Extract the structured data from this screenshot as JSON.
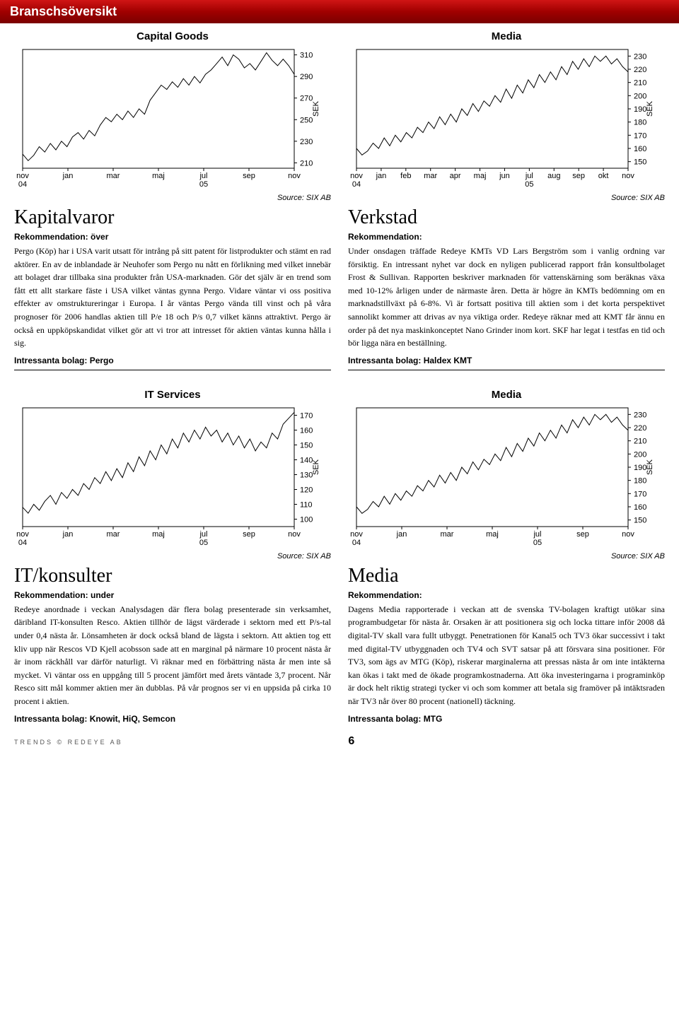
{
  "header": {
    "title": "Branschsöversikt"
  },
  "charts": {
    "capital_goods": {
      "title": "Capital Goods",
      "type": "line",
      "ylabel": "SEK",
      "ylim": [
        205,
        315
      ],
      "yticks": [
        210,
        230,
        250,
        270,
        290,
        310
      ],
      "xticks": [
        "nov 04",
        "jan",
        "mar",
        "maj",
        "jul 05",
        "sep",
        "nov"
      ],
      "source": "Source: SIX AB",
      "line_color": "#000000",
      "border_color": "#000000",
      "background_color": "#ffffff",
      "line_width": 1,
      "values": [
        218,
        212,
        217,
        225,
        220,
        228,
        222,
        230,
        225,
        234,
        238,
        232,
        240,
        235,
        245,
        252,
        248,
        255,
        250,
        258,
        252,
        260,
        255,
        268,
        275,
        282,
        278,
        285,
        280,
        288,
        282,
        290,
        284,
        292,
        296,
        302,
        308,
        300,
        310,
        306,
        298,
        302,
        296,
        304,
        312,
        305,
        300,
        306,
        300,
        292
      ]
    },
    "media_top": {
      "title": "Media",
      "type": "line",
      "ylabel": "SEK",
      "ylim": [
        145,
        235
      ],
      "yticks": [
        150,
        160,
        170,
        180,
        190,
        200,
        210,
        220,
        230
      ],
      "xticks": [
        "nov 04",
        "jan",
        "feb",
        "mar",
        "apr",
        "maj",
        "jun",
        "jul 05",
        "aug",
        "sep",
        "okt",
        "nov"
      ],
      "source": "Source: SIX AB",
      "line_color": "#000000",
      "border_color": "#000000",
      "background_color": "#ffffff",
      "line_width": 1,
      "values": [
        160,
        155,
        158,
        164,
        160,
        168,
        162,
        170,
        165,
        172,
        168,
        176,
        172,
        180,
        175,
        184,
        178,
        186,
        180,
        190,
        185,
        194,
        188,
        196,
        192,
        200,
        195,
        205,
        198,
        208,
        202,
        212,
        206,
        216,
        210,
        218,
        212,
        222,
        216,
        226,
        220,
        228,
        222,
        230,
        226,
        230,
        224,
        228,
        222,
        218
      ]
    },
    "it_services": {
      "title": "IT Services",
      "type": "line",
      "ylabel": "SEK",
      "ylim": [
        95,
        175
      ],
      "yticks": [
        100,
        110,
        120,
        130,
        140,
        150,
        160,
        170
      ],
      "xticks": [
        "nov 04",
        "jan",
        "mar",
        "maj",
        "jul 05",
        "sep",
        "nov"
      ],
      "source": "Source: SIX AB",
      "line_color": "#000000",
      "border_color": "#000000",
      "background_color": "#ffffff",
      "line_width": 1,
      "values": [
        108,
        104,
        110,
        106,
        112,
        116,
        110,
        118,
        114,
        120,
        116,
        124,
        120,
        128,
        124,
        132,
        126,
        134,
        128,
        138,
        132,
        142,
        136,
        146,
        140,
        150,
        144,
        154,
        148,
        158,
        152,
        160,
        154,
        162,
        156,
        160,
        152,
        158,
        150,
        156,
        148,
        154,
        146,
        152,
        148,
        158,
        154,
        164,
        168,
        172
      ]
    },
    "media_bottom": {
      "title": "Media",
      "type": "line",
      "ylabel": "SEK",
      "ylim": [
        145,
        235
      ],
      "yticks": [
        150,
        160,
        170,
        180,
        190,
        200,
        210,
        220,
        230
      ],
      "xticks": [
        "nov 04",
        "jan",
        "mar",
        "maj",
        "jul 05",
        "sep",
        "nov"
      ],
      "source": "Source: SIX AB",
      "line_color": "#000000",
      "border_color": "#000000",
      "background_color": "#ffffff",
      "line_width": 1,
      "values": [
        160,
        155,
        158,
        164,
        160,
        168,
        162,
        170,
        165,
        172,
        168,
        176,
        172,
        180,
        175,
        184,
        178,
        186,
        180,
        190,
        185,
        194,
        188,
        196,
        192,
        200,
        195,
        205,
        198,
        208,
        202,
        212,
        206,
        216,
        210,
        218,
        212,
        222,
        216,
        226,
        220,
        228,
        222,
        230,
        226,
        230,
        224,
        228,
        222,
        218
      ]
    }
  },
  "sections": {
    "kapitalvaror": {
      "title": "Kapitalvaror",
      "reco_label": "Rekommendation: över",
      "body": "Pergo (Köp) har i USA varit utsatt för intrång på sitt patent för listprodukter och stämt en rad aktörer. En av de inblandade är Neuhofer som Pergo nu nått en förlikning med vilket innebär att bolaget drar tillbaka sina produkter från USA-marknaden. Gör det själv är en trend som fått ett allt starkare fäste i USA vilket väntas gynna Pergo. Vidare väntar vi oss positiva effekter av omstruktureringar i Europa. I år väntas Pergo vända till vinst och på våra prognoser för 2006 handlas aktien till P/e 18 och P/s 0,7 vilket känns attraktivt. Pergo är också en uppköpskandidat vilket gör att vi tror att intresset för aktien väntas kunna hålla i sig.",
      "interesting": "Intressanta bolag: Pergo"
    },
    "verkstad": {
      "title": "Verkstad",
      "reco_label": "Rekommendation:",
      "body": "Under onsdagen träffade Redeye KMTs VD Lars Bergström som i vanlig ordning var försiktig. En intressant nyhet var dock en nyligen publicerad rapport från konsultbolaget Frost & Sullivan. Rapporten beskriver marknaden för vattenskärning som beräknas växa med 10-12% årligen under de närmaste åren. Detta är högre än KMTs bedömning om en marknadstillväxt på 6-8%. Vi är fortsatt positiva till aktien som i det korta perspektivet sannolikt kommer att drivas av nya viktiga order. Redeye räknar med att KMT får ännu en order på det nya maskinkonceptet Nano Grinder inom kort. SKF har legat i testfas en tid och bör ligga nära en beställning.",
      "interesting": "Intressanta bolag: Haldex KMT"
    },
    "itkonsulter": {
      "title": "IT/konsulter",
      "reco_label": "Rekommendation: under",
      "body": "Redeye anordnade i veckan Analysdagen där flera bolag presenterade sin verksamhet, däribland IT-konsulten Resco. Aktien tillhör de lägst värderade i sektorn med ett P/s-tal under 0,4 nästa år. Lönsamheten är dock också bland de lägsta i sektorn. Att aktien tog ett kliv upp när Rescos VD Kjell acobsson sade att en marginal på närmare 10 procent nästa år är inom räckhåll var därför naturligt. Vi räknar med en förbättring nästa år men inte så mycket. Vi väntar oss en uppgång till 5 procent jämfört med årets väntade 3,7 procent. Når Resco sitt mål kommer aktien mer än dubblas. På vår prognos ser vi en uppsida på cirka 10 procent i aktien.",
      "interesting": "Intressanta bolag: Knowit, HiQ, Semcon"
    },
    "media": {
      "title": "Media",
      "reco_label": "Rekommendation:",
      "body": "Dagens Media rapporterade i veckan att de svenska TV-bolagen kraftigt utökar sina programbudgetar för nästa år. Orsaken är att positionera sig och locka tittare inför 2008 då digital-TV skall vara fullt utbyggt. Penetrationen för Kanal5 och TV3 ökar successivt i takt med digital-TV utbyggnaden och TV4 och SVT satsar på att försvara sina positioner. För TV3, som ägs av MTG (Köp), riskerar marginalerna att pressas nästa år om inte intäkterna kan ökas i takt med de ökade programkostnaderna. Att öka investeringarna i programinköp är dock helt riktig strategi tycker vi och som kommer att betala sig framöver på intäktsraden när TV3 når över 80 procent (nationell) täckning.",
      "interesting": "Intressanta bolag: MTG"
    }
  },
  "footer": {
    "left": "TRENDS © REDEYE AB",
    "page": "6"
  }
}
